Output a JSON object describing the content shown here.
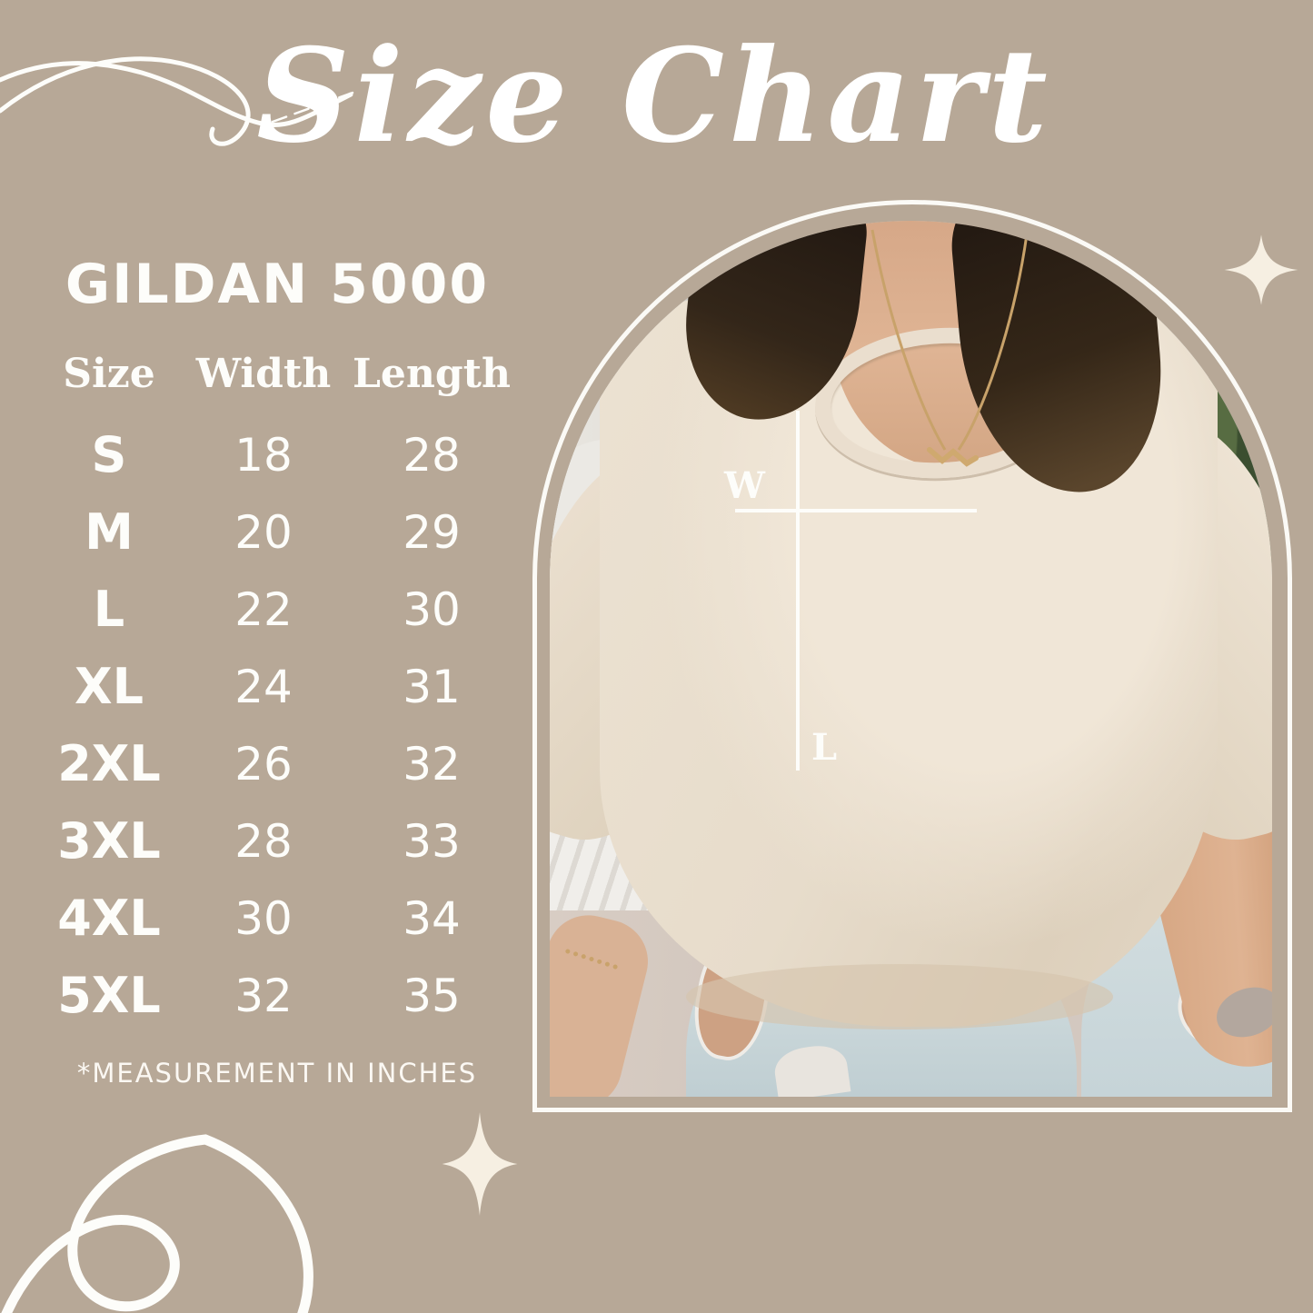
{
  "title": "Size Chart",
  "left_panel": {
    "product_name": "GILDAN 5000",
    "table": {
      "headers": [
        "Size",
        "Width",
        "Length"
      ],
      "rows": [
        [
          "S",
          "18",
          "28"
        ],
        [
          "M",
          "20",
          "29"
        ],
        [
          "L",
          "22",
          "30"
        ],
        [
          "XL",
          "24",
          "31"
        ],
        [
          "2XL",
          "26",
          "32"
        ],
        [
          "3XL",
          "28",
          "33"
        ],
        [
          "4XL",
          "30",
          "34"
        ],
        [
          "5XL",
          "32",
          "35"
        ]
      ]
    },
    "note": "*MEASUREMENT IN INCHES"
  },
  "photo": {
    "measurement_labels": {
      "width": "W",
      "length": "L"
    }
  },
  "chart_data": {
    "type": "table",
    "title": "Size Chart",
    "subtitle": "GILDAN 5000",
    "columns": [
      "Size",
      "Width",
      "Length"
    ],
    "rows": [
      [
        "S",
        18,
        28
      ],
      [
        "M",
        20,
        29
      ],
      [
        "L",
        22,
        30
      ],
      [
        "XL",
        24,
        31
      ],
      [
        "2XL",
        26,
        32
      ],
      [
        "3XL",
        28,
        33
      ],
      [
        "4XL",
        30,
        34
      ],
      [
        "5XL",
        32,
        35
      ]
    ],
    "units": "inches"
  },
  "colors": {
    "background": "#b7a897",
    "text": "#fdfdfa",
    "sparkle": "#f6efe2",
    "outline": "#fbfaf6",
    "shirt": "#e7dccb",
    "jeans": "#c9d6d9"
  }
}
